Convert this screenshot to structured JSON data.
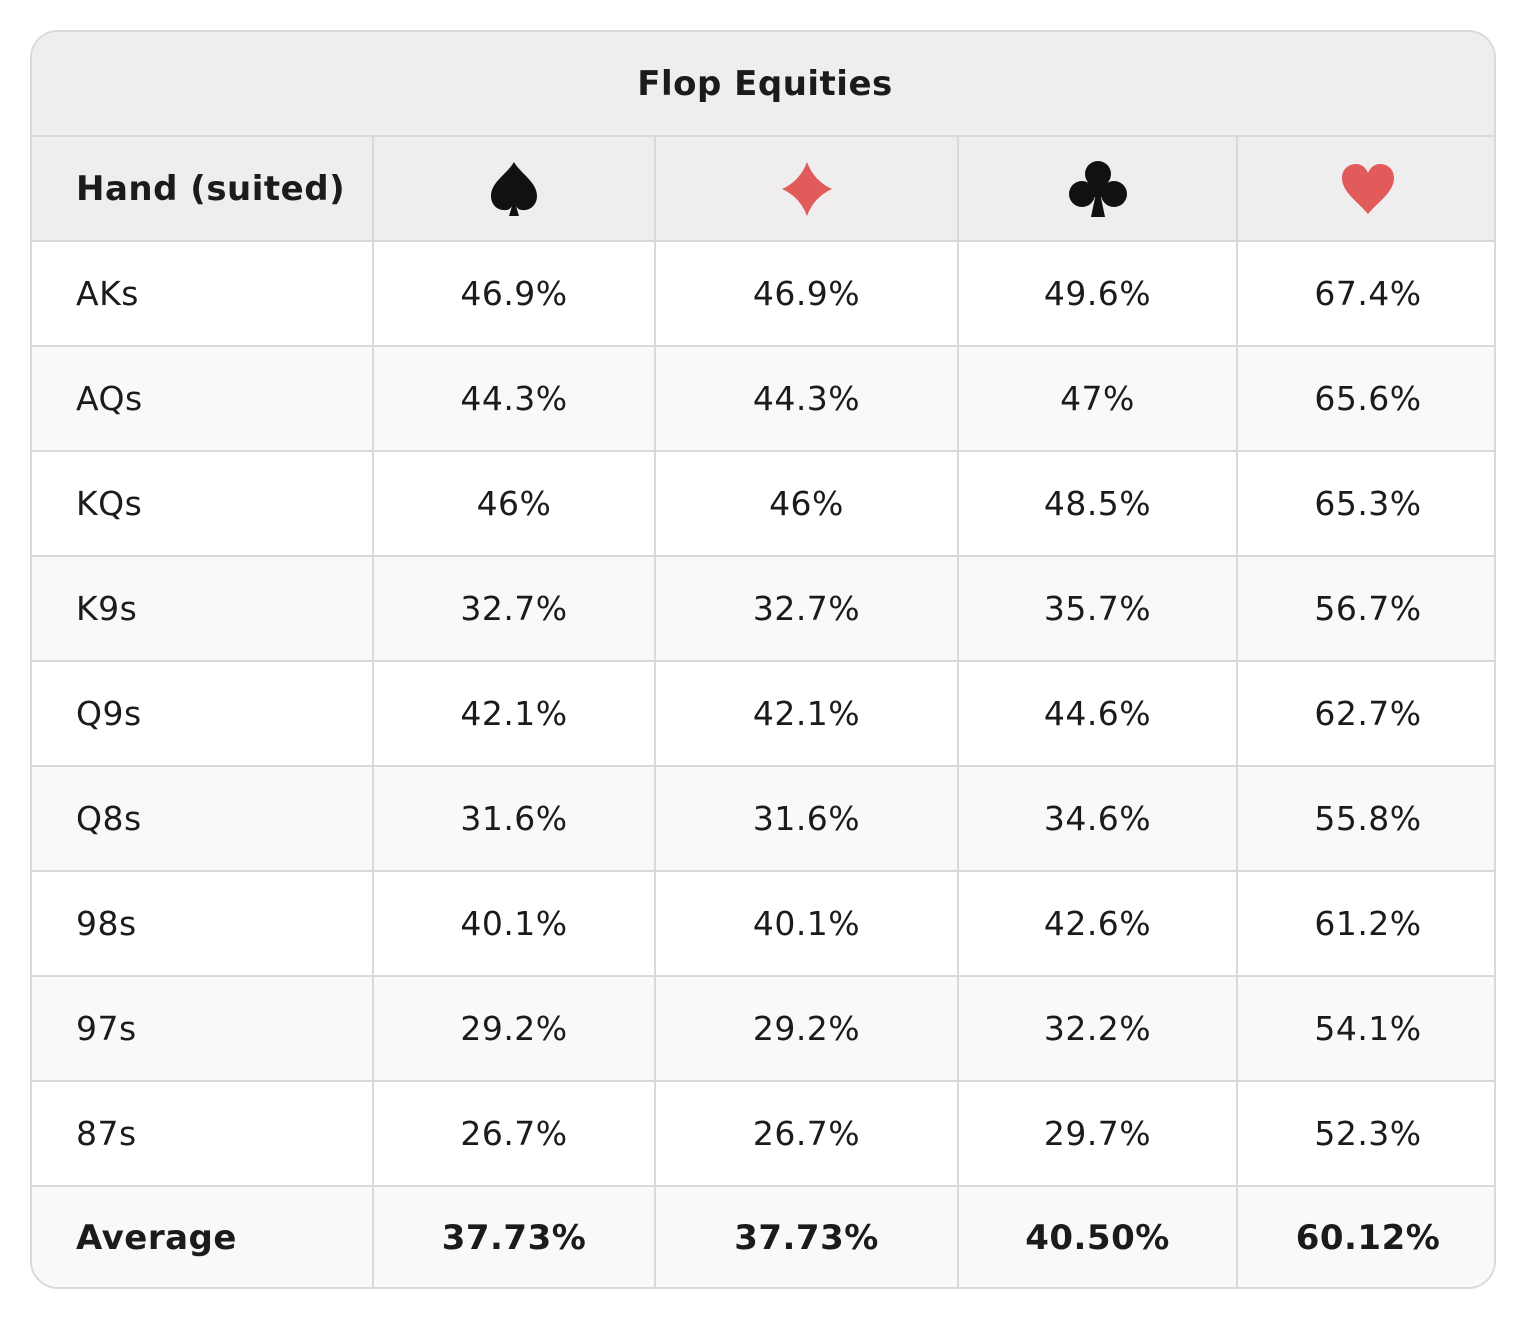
{
  "chart_data": {
    "type": "table",
    "title": "Flop Equities",
    "columns": [
      {
        "label": "Hand (suited)"
      },
      {
        "suit": "spade",
        "icon": "spade-icon",
        "color": "#111111"
      },
      {
        "suit": "diamond",
        "icon": "diamond-icon",
        "color": "#e25b5b"
      },
      {
        "suit": "club",
        "icon": "club-icon",
        "color": "#111111"
      },
      {
        "suit": "heart",
        "icon": "heart-icon",
        "color": "#e25b5b"
      }
    ],
    "rows": [
      {
        "hand": "AKs",
        "values": [
          "46.9%",
          "46.9%",
          "49.6%",
          "67.4%"
        ]
      },
      {
        "hand": "AQs",
        "values": [
          "44.3%",
          "44.3%",
          "47%",
          "65.6%"
        ]
      },
      {
        "hand": "KQs",
        "values": [
          "46%",
          "46%",
          "48.5%",
          "65.3%"
        ]
      },
      {
        "hand": "K9s",
        "values": [
          "32.7%",
          "32.7%",
          "35.7%",
          "56.7%"
        ]
      },
      {
        "hand": "Q9s",
        "values": [
          "42.1%",
          "42.1%",
          "44.6%",
          "62.7%"
        ]
      },
      {
        "hand": "Q8s",
        "values": [
          "31.6%",
          "31.6%",
          "34.6%",
          "55.8%"
        ]
      },
      {
        "hand": "98s",
        "values": [
          "40.1%",
          "40.1%",
          "42.6%",
          "61.2%"
        ]
      },
      {
        "hand": "97s",
        "values": [
          "29.2%",
          "29.2%",
          "32.2%",
          "54.1%"
        ]
      },
      {
        "hand": "87s",
        "values": [
          "26.7%",
          "26.7%",
          "29.7%",
          "52.3%"
        ]
      }
    ],
    "average": {
      "label": "Average",
      "values": [
        "37.73%",
        "37.73%",
        "40.50%",
        "60.12%"
      ]
    }
  }
}
